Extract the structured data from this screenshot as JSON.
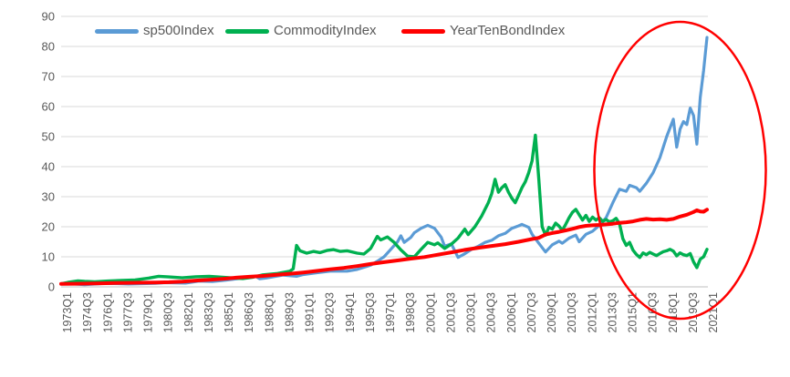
{
  "chart_data": {
    "type": "line",
    "title": "",
    "legend_position": "top",
    "grid": true,
    "x_axis": {
      "frequency": "quarterly",
      "first_quarter": "1973Q1",
      "last_quarter": "2021Q1",
      "tick_labels": [
        "1973Q1",
        "1974Q3",
        "1976Q1",
        "1977Q3",
        "1979Q1",
        "1980Q3",
        "1982Q1",
        "1983Q3",
        "1985Q1",
        "1986Q3",
        "1988Q1",
        "1989Q3",
        "1991Q1",
        "1992Q3",
        "1994Q1",
        "1995Q3",
        "1997Q1",
        "1998Q3",
        "2000Q1",
        "2001Q3",
        "2003Q1",
        "2004Q3",
        "2006Q1",
        "2007Q3",
        "2009Q1",
        "2010Q3",
        "2012Q1",
        "2013Q3",
        "2015Q1",
        "2016Q3",
        "2018Q1",
        "2019Q3",
        "2021Q1"
      ]
    },
    "y_axis": {
      "min": 0,
      "max": 90,
      "tick_step": 10,
      "tick_labels": [
        "0",
        "10",
        "20",
        "30",
        "40",
        "50",
        "60",
        "70",
        "80",
        "90"
      ]
    },
    "interpolation": "linear",
    "series": [
      {
        "name": "sp500Index",
        "color": "#5B9BD5",
        "stroke_width": 3.2,
        "keyframes": [
          [
            "1973Q1",
            1.0
          ],
          [
            "1973Q3",
            1.05
          ],
          [
            "1974Q1",
            0.95
          ],
          [
            "1974Q4",
            0.72
          ],
          [
            "1975Q3",
            0.95
          ],
          [
            "1976Q1",
            1.1
          ],
          [
            "1977Q1",
            1.1
          ],
          [
            "1978Q1",
            0.95
          ],
          [
            "1979Q1",
            1.05
          ],
          [
            "1980Q1",
            1.15
          ],
          [
            "1980Q4",
            1.4
          ],
          [
            "1981Q3",
            1.3
          ],
          [
            "1982Q2",
            1.25
          ],
          [
            "1983Q2",
            1.9
          ],
          [
            "1984Q2",
            1.8
          ],
          [
            "1985Q2",
            2.2
          ],
          [
            "1986Q2",
            2.8
          ],
          [
            "1987Q3",
            3.4
          ],
          [
            "1987Q4",
            2.7
          ],
          [
            "1988Q2",
            2.95
          ],
          [
            "1989Q3",
            3.9
          ],
          [
            "1990Q3",
            3.5
          ],
          [
            "1991Q1",
            4.1
          ],
          [
            "1992Q1",
            4.7
          ],
          [
            "1993Q1",
            5.2
          ],
          [
            "1994Q2",
            5.2
          ],
          [
            "1995Q1",
            5.8
          ],
          [
            "1996Q1",
            7.2
          ],
          [
            "1996Q3",
            8.5
          ],
          [
            "1997Q1",
            10.0
          ],
          [
            "1997Q3",
            12.5
          ],
          [
            "1998Q1",
            15.0
          ],
          [
            "1998Q2",
            17.0
          ],
          [
            "1998Q3",
            14.8
          ],
          [
            "1999Q1",
            16.5
          ],
          [
            "1999Q2",
            18.0
          ],
          [
            "1999Q4",
            19.5
          ],
          [
            "2000Q2",
            20.5
          ],
          [
            "2000Q4",
            19.5
          ],
          [
            "2001Q2",
            16.5
          ],
          [
            "2001Q3",
            13.5
          ],
          [
            "2002Q1",
            14.3
          ],
          [
            "2002Q3",
            9.8
          ],
          [
            "2003Q1",
            11.0
          ],
          [
            "2003Q3",
            12.5
          ],
          [
            "2004Q1",
            13.5
          ],
          [
            "2004Q3",
            14.8
          ],
          [
            "2005Q1",
            15.5
          ],
          [
            "2005Q3",
            17.0
          ],
          [
            "2006Q1",
            17.8
          ],
          [
            "2006Q3",
            19.5
          ],
          [
            "2007Q1",
            20.3
          ],
          [
            "2007Q2",
            20.8
          ],
          [
            "2007Q4",
            19.8
          ],
          [
            "2008Q1",
            17.5
          ],
          [
            "2008Q3",
            14.5
          ],
          [
            "2009Q1",
            11.6
          ],
          [
            "2009Q3",
            14.0
          ],
          [
            "2010Q1",
            15.2
          ],
          [
            "2010Q2",
            14.5
          ],
          [
            "2010Q4",
            16.2
          ],
          [
            "2011Q2",
            17.2
          ],
          [
            "2011Q3",
            15.0
          ],
          [
            "2012Q1",
            17.5
          ],
          [
            "2012Q3",
            18.5
          ],
          [
            "2013Q1",
            20.5
          ],
          [
            "2013Q3",
            23.0
          ],
          [
            "2014Q1",
            28.0
          ],
          [
            "2014Q3",
            32.5
          ],
          [
            "2015Q1",
            31.8
          ],
          [
            "2015Q2",
            33.8
          ],
          [
            "2015Q4",
            33.0
          ],
          [
            "2016Q1",
            31.8
          ],
          [
            "2016Q3",
            34.5
          ],
          [
            "2017Q1",
            38.0
          ],
          [
            "2017Q3",
            43.0
          ],
          [
            "2018Q1",
            50.0
          ],
          [
            "2018Q3",
            55.8
          ],
          [
            "2018Q4",
            46.5
          ],
          [
            "2019Q1",
            52.5
          ],
          [
            "2019Q2",
            55.0
          ],
          [
            "2019Q3",
            54.0
          ],
          [
            "2019Q4",
            59.5
          ],
          [
            "2020Q1",
            57.0
          ],
          [
            "2020Q2",
            47.5
          ],
          [
            "2020Q3",
            63.0
          ],
          [
            "2020Q4",
            72.0
          ],
          [
            "2021Q1",
            83.0
          ]
        ]
      },
      {
        "name": "CommodityIndex",
        "color": "#00B050",
        "stroke_width": 3.4,
        "keyframes": [
          [
            "1973Q1",
            1.0
          ],
          [
            "1973Q3",
            1.5
          ],
          [
            "1974Q2",
            2.0
          ],
          [
            "1974Q4",
            1.85
          ],
          [
            "1975Q3",
            1.7
          ],
          [
            "1976Q3",
            1.95
          ],
          [
            "1977Q3",
            2.15
          ],
          [
            "1978Q3",
            2.3
          ],
          [
            "1979Q3",
            2.9
          ],
          [
            "1980Q2",
            3.5
          ],
          [
            "1981Q1",
            3.3
          ],
          [
            "1982Q1",
            3.0
          ],
          [
            "1983Q1",
            3.35
          ],
          [
            "1984Q1",
            3.5
          ],
          [
            "1985Q1",
            3.2
          ],
          [
            "1986Q1",
            2.9
          ],
          [
            "1986Q3",
            2.75
          ],
          [
            "1987Q2",
            3.2
          ],
          [
            "1988Q1",
            4.0
          ],
          [
            "1989Q1",
            4.4
          ],
          [
            "1990Q1",
            5.2
          ],
          [
            "1990Q2",
            6.0
          ],
          [
            "1990Q3",
            13.8
          ],
          [
            "1990Q4",
            12.0
          ],
          [
            "1991Q2",
            11.2
          ],
          [
            "1991Q4",
            11.8
          ],
          [
            "1992Q2",
            11.4
          ],
          [
            "1992Q4",
            12.1
          ],
          [
            "1993Q2",
            12.4
          ],
          [
            "1993Q4",
            11.8
          ],
          [
            "1994Q2",
            12.0
          ],
          [
            "1995Q1",
            11.2
          ],
          [
            "1995Q3",
            10.9
          ],
          [
            "1996Q1",
            12.8
          ],
          [
            "1996Q3",
            16.8
          ],
          [
            "1996Q4",
            15.6
          ],
          [
            "1997Q2",
            16.6
          ],
          [
            "1997Q4",
            14.8
          ],
          [
            "1998Q2",
            12.3
          ],
          [
            "1998Q4",
            10.2
          ],
          [
            "1999Q2",
            10.0
          ],
          [
            "1999Q4",
            12.5
          ],
          [
            "2000Q2",
            14.8
          ],
          [
            "2000Q4",
            14.0
          ],
          [
            "2001Q1",
            14.6
          ],
          [
            "2001Q3",
            12.8
          ],
          [
            "2002Q1",
            14.2
          ],
          [
            "2002Q3",
            16.2
          ],
          [
            "2003Q1",
            19.2
          ],
          [
            "2003Q2",
            17.4
          ],
          [
            "2003Q4",
            20.0
          ],
          [
            "2004Q2",
            23.5
          ],
          [
            "2004Q4",
            28.0
          ],
          [
            "2005Q1",
            31.0
          ],
          [
            "2005Q2",
            35.8
          ],
          [
            "2005Q3",
            31.5
          ],
          [
            "2005Q4",
            33.0
          ],
          [
            "2006Q1",
            34.0
          ],
          [
            "2006Q2",
            31.5
          ],
          [
            "2006Q3",
            29.5
          ],
          [
            "2006Q4",
            28.0
          ],
          [
            "2007Q1",
            30.5
          ],
          [
            "2007Q2",
            33.0
          ],
          [
            "2007Q3",
            35.0
          ],
          [
            "2007Q4",
            38.0
          ],
          [
            "2008Q1",
            42.0
          ],
          [
            "2008Q2",
            50.5
          ],
          [
            "2008Q3",
            36.0
          ],
          [
            "2008Q4",
            20.0
          ],
          [
            "2009Q1",
            17.2
          ],
          [
            "2009Q2",
            19.8
          ],
          [
            "2009Q3",
            19.2
          ],
          [
            "2009Q4",
            21.2
          ],
          [
            "2010Q1",
            20.2
          ],
          [
            "2010Q2",
            18.8
          ],
          [
            "2010Q3",
            20.8
          ],
          [
            "2010Q4",
            23.0
          ],
          [
            "2011Q1",
            24.8
          ],
          [
            "2011Q2",
            25.8
          ],
          [
            "2011Q3",
            24.0
          ],
          [
            "2011Q4",
            22.2
          ],
          [
            "2012Q1",
            23.8
          ],
          [
            "2012Q2",
            21.8
          ],
          [
            "2012Q3",
            23.2
          ],
          [
            "2012Q4",
            22.2
          ],
          [
            "2013Q1",
            23.0
          ],
          [
            "2013Q2",
            21.8
          ],
          [
            "2013Q3",
            22.4
          ],
          [
            "2013Q4",
            21.6
          ],
          [
            "2014Q1",
            22.0
          ],
          [
            "2014Q2",
            22.8
          ],
          [
            "2014Q3",
            21.0
          ],
          [
            "2014Q4",
            16.0
          ],
          [
            "2015Q1",
            13.8
          ],
          [
            "2015Q2",
            14.8
          ],
          [
            "2015Q3",
            12.2
          ],
          [
            "2015Q4",
            10.8
          ],
          [
            "2016Q1",
            9.8
          ],
          [
            "2016Q2",
            11.3
          ],
          [
            "2016Q3",
            10.7
          ],
          [
            "2016Q4",
            11.5
          ],
          [
            "2017Q1",
            10.9
          ],
          [
            "2017Q2",
            10.4
          ],
          [
            "2017Q3",
            11.1
          ],
          [
            "2017Q4",
            11.7
          ],
          [
            "2018Q1",
            12.0
          ],
          [
            "2018Q2",
            12.5
          ],
          [
            "2018Q3",
            11.9
          ],
          [
            "2018Q4",
            10.3
          ],
          [
            "2019Q1",
            11.3
          ],
          [
            "2019Q2",
            10.7
          ],
          [
            "2019Q3",
            10.4
          ],
          [
            "2019Q4",
            11.1
          ],
          [
            "2020Q1",
            8.3
          ],
          [
            "2020Q2",
            6.4
          ],
          [
            "2020Q3",
            9.2
          ],
          [
            "2020Q4",
            10.0
          ],
          [
            "2021Q1",
            12.5
          ]
        ]
      },
      {
        "name": "YearTenBondIndex",
        "color": "#FF0000",
        "stroke_width": 4.0,
        "keyframes": [
          [
            "1973Q1",
            1.0
          ],
          [
            "1974Q1",
            1.02
          ],
          [
            "1975Q1",
            1.08
          ],
          [
            "1976Q1",
            1.18
          ],
          [
            "1977Q1",
            1.28
          ],
          [
            "1978Q1",
            1.33
          ],
          [
            "1979Q1",
            1.38
          ],
          [
            "1980Q1",
            1.45
          ],
          [
            "1981Q1",
            1.55
          ],
          [
            "1982Q1",
            1.75
          ],
          [
            "1983Q1",
            2.1
          ],
          [
            "1984Q1",
            2.35
          ],
          [
            "1985Q1",
            2.65
          ],
          [
            "1986Q1",
            3.05
          ],
          [
            "1987Q1",
            3.35
          ],
          [
            "1988Q1",
            3.65
          ],
          [
            "1989Q1",
            4.0
          ],
          [
            "1990Q1",
            4.35
          ],
          [
            "1991Q1",
            4.8
          ],
          [
            "1992Q1",
            5.3
          ],
          [
            "1993Q1",
            5.85
          ],
          [
            "1994Q1",
            6.3
          ],
          [
            "1995Q1",
            6.9
          ],
          [
            "1996Q1",
            7.6
          ],
          [
            "1997Q1",
            8.2
          ],
          [
            "1998Q1",
            8.8
          ],
          [
            "1999Q1",
            9.4
          ],
          [
            "2000Q1",
            9.9
          ],
          [
            "2001Q1",
            10.7
          ],
          [
            "2002Q1",
            11.5
          ],
          [
            "2003Q1",
            12.3
          ],
          [
            "2004Q1",
            13.0
          ],
          [
            "2005Q1",
            13.6
          ],
          [
            "2006Q1",
            14.2
          ],
          [
            "2007Q1",
            15.0
          ],
          [
            "2008Q1",
            15.9
          ],
          [
            "2008Q3",
            16.3
          ],
          [
            "2009Q1",
            17.4
          ],
          [
            "2009Q3",
            17.9
          ],
          [
            "2010Q1",
            18.3
          ],
          [
            "2010Q3",
            18.8
          ],
          [
            "2011Q1",
            19.3
          ],
          [
            "2011Q3",
            19.9
          ],
          [
            "2012Q1",
            20.3
          ],
          [
            "2012Q3",
            20.5
          ],
          [
            "2013Q1",
            20.6
          ],
          [
            "2013Q3",
            20.8
          ],
          [
            "2014Q1",
            21.0
          ],
          [
            "2014Q3",
            21.3
          ],
          [
            "2015Q1",
            21.5
          ],
          [
            "2015Q3",
            21.8
          ],
          [
            "2016Q1",
            22.3
          ],
          [
            "2016Q3",
            22.6
          ],
          [
            "2017Q1",
            22.4
          ],
          [
            "2017Q3",
            22.5
          ],
          [
            "2018Q1",
            22.3
          ],
          [
            "2018Q3",
            22.6
          ],
          [
            "2019Q1",
            23.4
          ],
          [
            "2019Q3",
            24.0
          ],
          [
            "2020Q1",
            24.9
          ],
          [
            "2020Q2",
            25.5
          ],
          [
            "2020Q3",
            25.1
          ],
          [
            "2020Q4",
            25.0
          ],
          [
            "2021Q1",
            25.7
          ]
        ]
      }
    ],
    "annotation": {
      "shape": "ellipse",
      "color": "#FF0000",
      "stroke_width": 2.5,
      "center_quarter": "2019Q1",
      "center_value": 38.8,
      "radius_quarters": 25.5,
      "radius_value": 49.4,
      "meaning": "highlights divergence of sp500Index from CommodityIndex and YearTenBondIndex after ~2013"
    },
    "colors": {
      "gridline": "#D9D9D9",
      "axis_line": "#BFBFBF",
      "tick_text": "#595959",
      "legend_text": "#595959"
    }
  },
  "legend": {
    "items": [
      {
        "label": "sp500Index"
      },
      {
        "label": "CommodityIndex"
      },
      {
        "label": "YearTenBondIndex"
      }
    ]
  }
}
